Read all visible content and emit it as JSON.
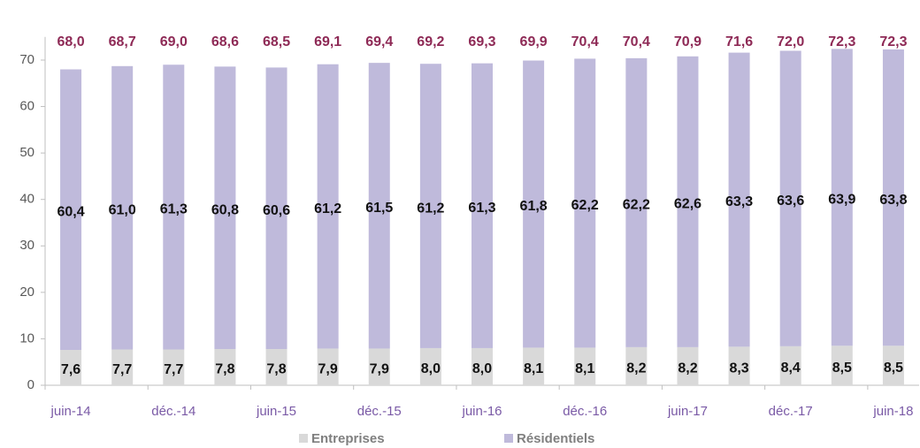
{
  "chart_data": {
    "type": "stacked_bar",
    "categories": [
      "juin-14",
      null,
      "déc.-14",
      null,
      "juin-15",
      null,
      "déc.-15",
      null,
      "juin-16",
      null,
      "déc.-16",
      null,
      "juin-17",
      null,
      "déc.-17",
      null,
      "juin-18"
    ],
    "series": [
      {
        "name": "Entreprises",
        "color": "#d9d9d9",
        "values": [
          7.6,
          7.7,
          7.7,
          7.8,
          7.8,
          7.9,
          7.9,
          8.0,
          8.0,
          8.1,
          8.1,
          8.2,
          8.2,
          8.3,
          8.4,
          8.5,
          8.5
        ],
        "value_labels": [
          "7,6",
          "7,7",
          "7,7",
          "7,8",
          "7,8",
          "7,9",
          "7,9",
          "8,0",
          "8,0",
          "8,1",
          "8,1",
          "8,2",
          "8,2",
          "8,3",
          "8,4",
          "8,5",
          "8,5"
        ]
      },
      {
        "name": "Résidentiels",
        "color": "#bfbadb",
        "values": [
          60.4,
          61.0,
          61.3,
          60.8,
          60.6,
          61.2,
          61.5,
          61.2,
          61.3,
          61.8,
          62.2,
          62.2,
          62.6,
          63.3,
          63.6,
          63.9,
          63.8
        ],
        "value_labels": [
          "60,4",
          "61,0",
          "61,3",
          "60,8",
          "60,6",
          "61,2",
          "61,5",
          "61,2",
          "61,3",
          "61,8",
          "62,2",
          "62,2",
          "62,6",
          "63,3",
          "63,6",
          "63,9",
          "63,8"
        ]
      }
    ],
    "totals": {
      "color": "#8e2a56",
      "values": [
        68.0,
        68.7,
        69.0,
        68.6,
        68.5,
        69.1,
        69.4,
        69.2,
        69.3,
        69.9,
        70.4,
        70.4,
        70.9,
        71.6,
        72.0,
        72.3,
        72.3
      ],
      "value_labels": [
        "68,0",
        "68,7",
        "69,0",
        "68,6",
        "68,5",
        "69,1",
        "69,4",
        "69,2",
        "69,3",
        "69,9",
        "70,4",
        "70,4",
        "70,9",
        "71,6",
        "72,0",
        "72,3",
        "72,3"
      ]
    },
    "ylim": [
      0,
      75
    ],
    "yticks": [
      0,
      10,
      20,
      30,
      40,
      50,
      60,
      70
    ],
    "grid": false,
    "legend": "bottom"
  }
}
